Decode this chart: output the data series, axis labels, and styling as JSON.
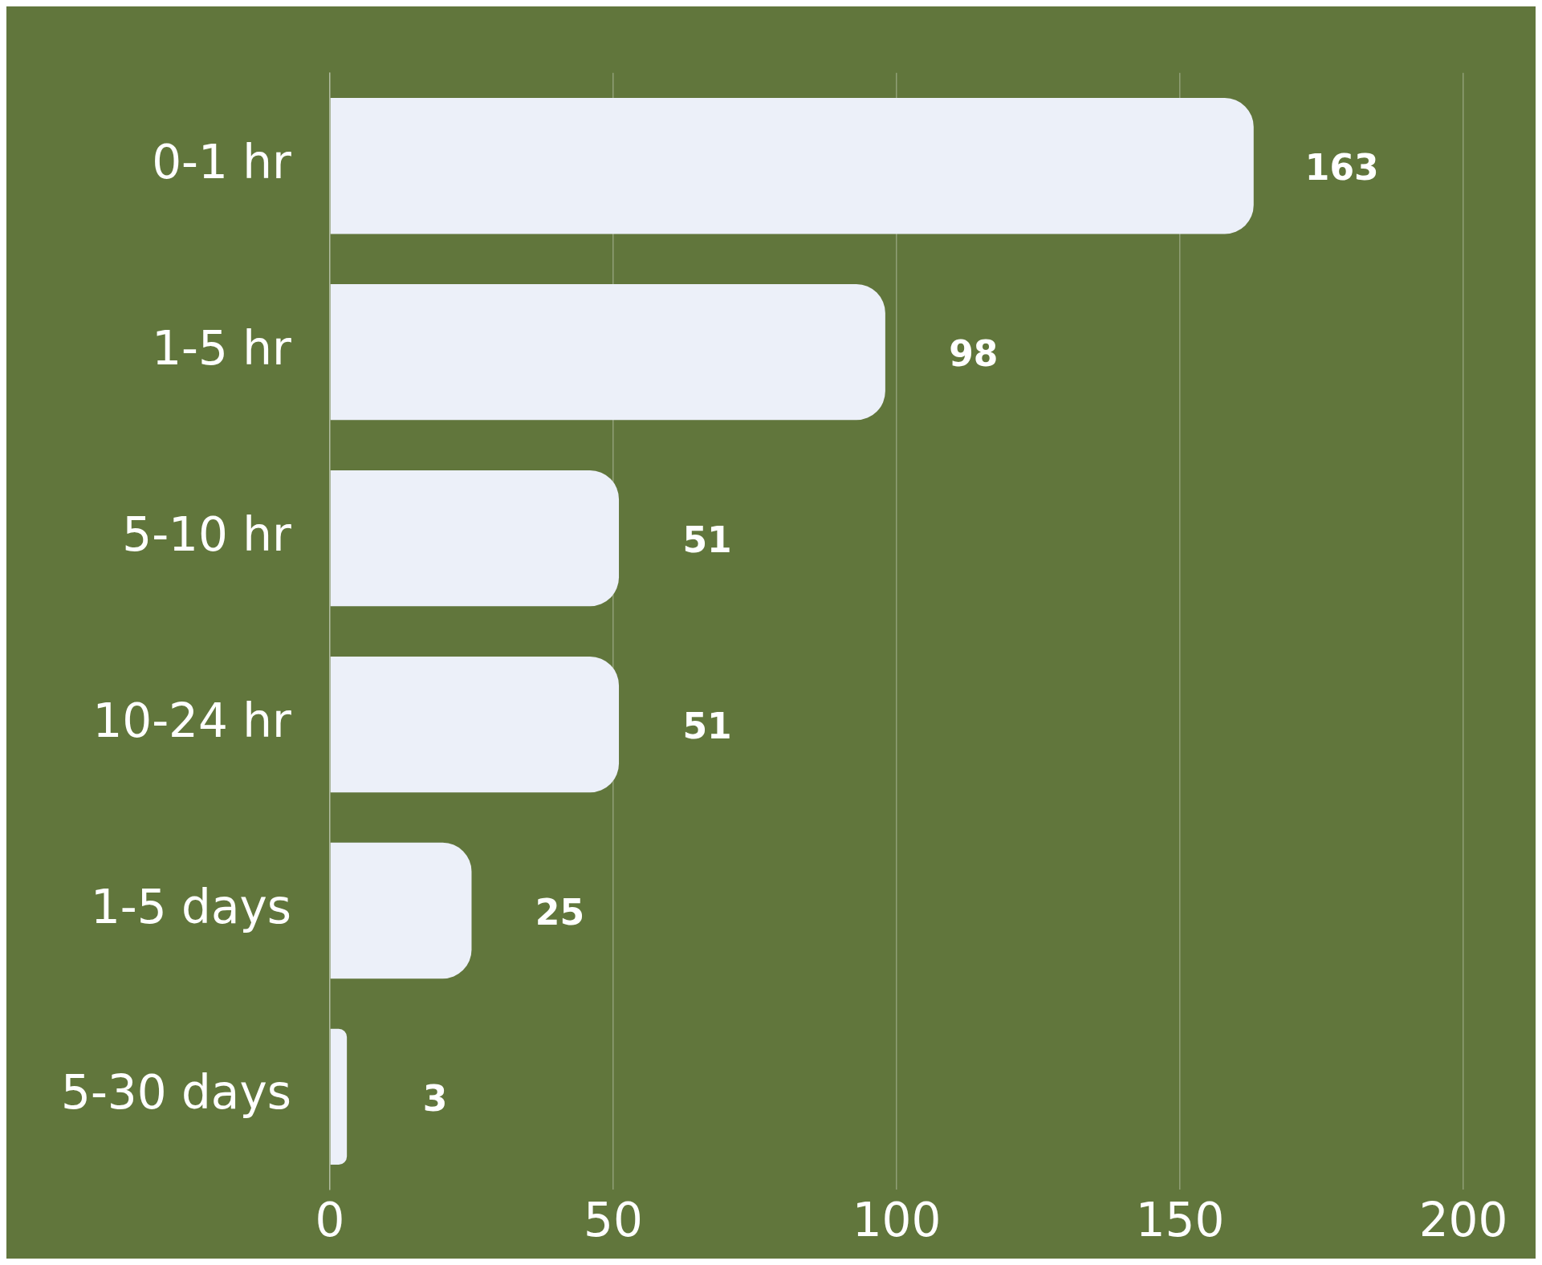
{
  "chart_data": {
    "type": "bar",
    "orientation": "horizontal",
    "categories": [
      "0-1 hr",
      "1-5 hr",
      "5-10 hr",
      "10-24 hr",
      "1-5 days",
      "5-30 days"
    ],
    "values": [
      163,
      98,
      51,
      51,
      25,
      3
    ],
    "color": "#ecf0f9",
    "xlim": [
      0,
      200
    ],
    "xticks": [
      0,
      50,
      100,
      150,
      200
    ],
    "grid": "x",
    "data_labels": true,
    "legend": false
  }
}
